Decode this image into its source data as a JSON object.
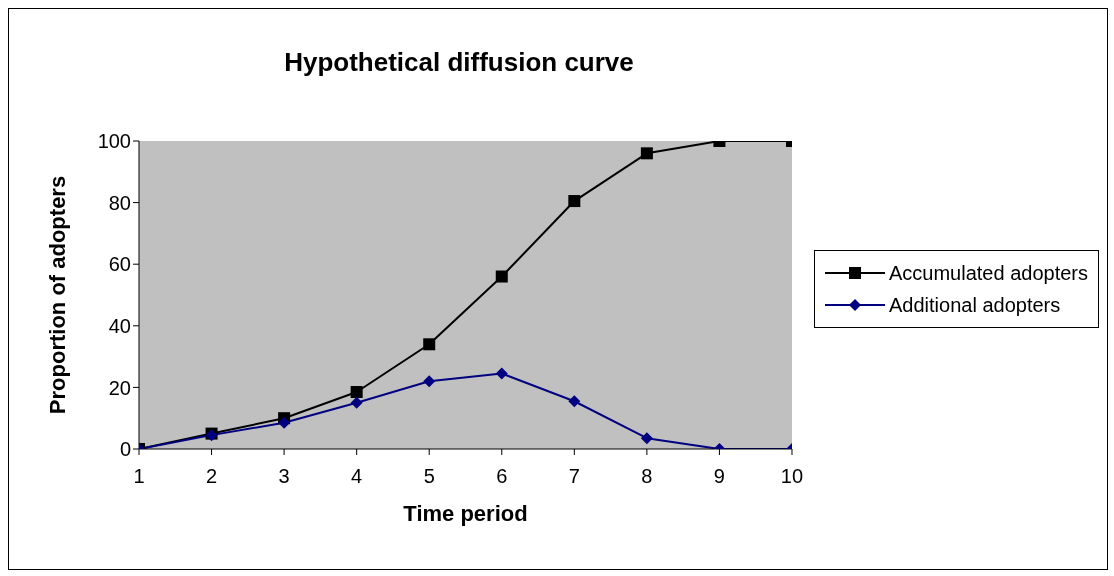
{
  "chart_data": {
    "type": "line",
    "title": "Hypothetical diffusion curve",
    "xlabel": "Time period",
    "ylabel": "Proportion of adopters",
    "x": [
      1,
      2,
      3,
      4,
      5,
      6,
      7,
      8,
      9,
      10
    ],
    "xlim": [
      1,
      10
    ],
    "xticks": [
      1,
      2,
      3,
      4,
      5,
      6,
      7,
      8,
      9,
      10
    ],
    "ylim": [
      0,
      100
    ],
    "yticks": [
      0,
      20,
      40,
      60,
      80,
      100
    ],
    "series": [
      {
        "name": "Accumulated adopters",
        "color": "#000000",
        "marker": "square",
        "values": [
          0,
          5,
          10,
          18.5,
          34,
          56,
          80.5,
          96,
          100,
          100
        ]
      },
      {
        "name": "Additional adopters",
        "color": "#000080",
        "marker": "diamond",
        "values": [
          0,
          4.5,
          8.5,
          15,
          22,
          24.5,
          15.5,
          3.5,
          0,
          0
        ]
      }
    ],
    "grid": false,
    "legend": "right",
    "line_style": "solid"
  }
}
